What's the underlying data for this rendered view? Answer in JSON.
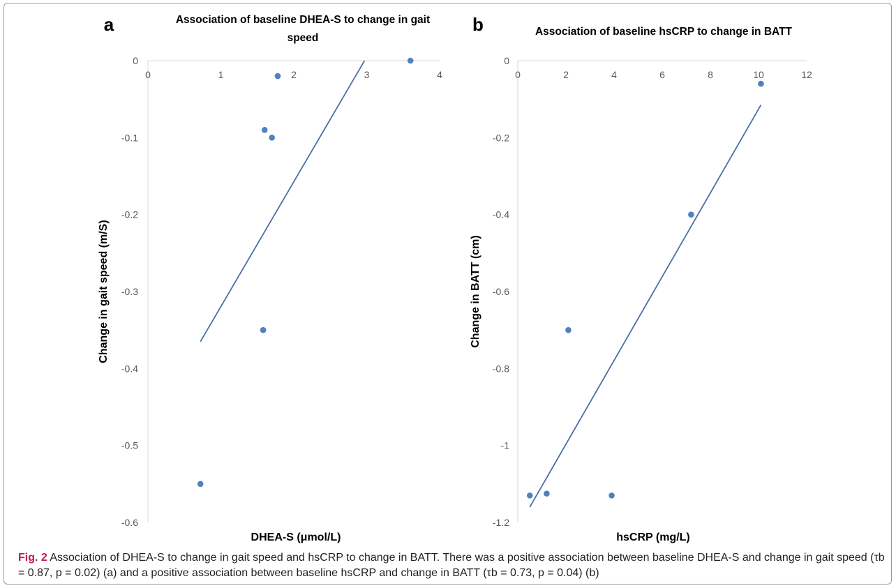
{
  "chart_data": [
    {
      "panel": "a",
      "type": "scatter",
      "title_lines": [
        "Association of baseline DHEA-S to change in gait",
        "speed"
      ],
      "xlabel": "DHEA-S (μmol/L)",
      "ylabel": "Change in gait speed (m/S)",
      "xlim": [
        0,
        4
      ],
      "ylim": [
        -0.6,
        0
      ],
      "xticks": [
        "0",
        "1",
        "2",
        "3",
        "4"
      ],
      "yticks": [
        "0",
        "-0.1",
        "-0.2",
        "-0.3",
        "-0.4",
        "-0.5",
        "-0.6"
      ],
      "xtick_values": [
        0,
        1,
        2,
        3,
        4
      ],
      "ytick_values": [
        0,
        -0.1,
        -0.2,
        -0.3,
        -0.4,
        -0.5,
        -0.6
      ],
      "points": [
        {
          "x": 0.72,
          "y": -0.55
        },
        {
          "x": 1.58,
          "y": -0.35
        },
        {
          "x": 1.6,
          "y": -0.09
        },
        {
          "x": 1.7,
          "y": -0.1
        },
        {
          "x": 1.78,
          "y": -0.02
        },
        {
          "x": 3.6,
          "y": 0
        }
      ],
      "trendline": {
        "x": [
          0.72,
          2.97
        ],
        "y": [
          -0.365,
          0
        ]
      },
      "color": "#4f81bd",
      "line_color": "#4a6fa5"
    },
    {
      "panel": "b",
      "type": "scatter",
      "title_lines": [
        "Association of baseline hsCRP to change in BATT"
      ],
      "xlabel": "hsCRP (mg/L)",
      "ylabel": "Change in BATT (cm)",
      "xlim": [
        0,
        12
      ],
      "ylim": [
        -1.2,
        0
      ],
      "xticks": [
        "0",
        "2",
        "4",
        "6",
        "8",
        "10",
        "12"
      ],
      "yticks": [
        "0",
        "-0.2",
        "-0.4",
        "-0.6",
        "-0.8",
        "-1",
        "-1.2"
      ],
      "xtick_values": [
        0,
        2,
        4,
        6,
        8,
        10,
        12
      ],
      "ytick_values": [
        0,
        -0.2,
        -0.4,
        -0.6,
        -0.8,
        -1,
        -1.2
      ],
      "points": [
        {
          "x": 0.5,
          "y": -1.13
        },
        {
          "x": 1.2,
          "y": -1.125
        },
        {
          "x": 2.1,
          "y": -0.7
        },
        {
          "x": 3.9,
          "y": -1.13
        },
        {
          "x": 7.2,
          "y": -0.4
        },
        {
          "x": 10.1,
          "y": -0.06
        }
      ],
      "trendline": {
        "x": [
          0.5,
          10.1
        ],
        "y": [
          -1.16,
          -0.115
        ]
      },
      "color": "#4f81bd",
      "line_color": "#4a6fa5"
    }
  ],
  "caption": {
    "lead": "Fig. 2",
    "text": "Association of DHEA-S to change in gait speed and hsCRP to change in BATT. There was a positive association between baseline DHEA-S and change in gait speed (τb = 0.87, p = 0.02) (a) and a positive association between baseline hsCRP and change in BATT (τb = 0.73, p = 0.04) (b)"
  }
}
